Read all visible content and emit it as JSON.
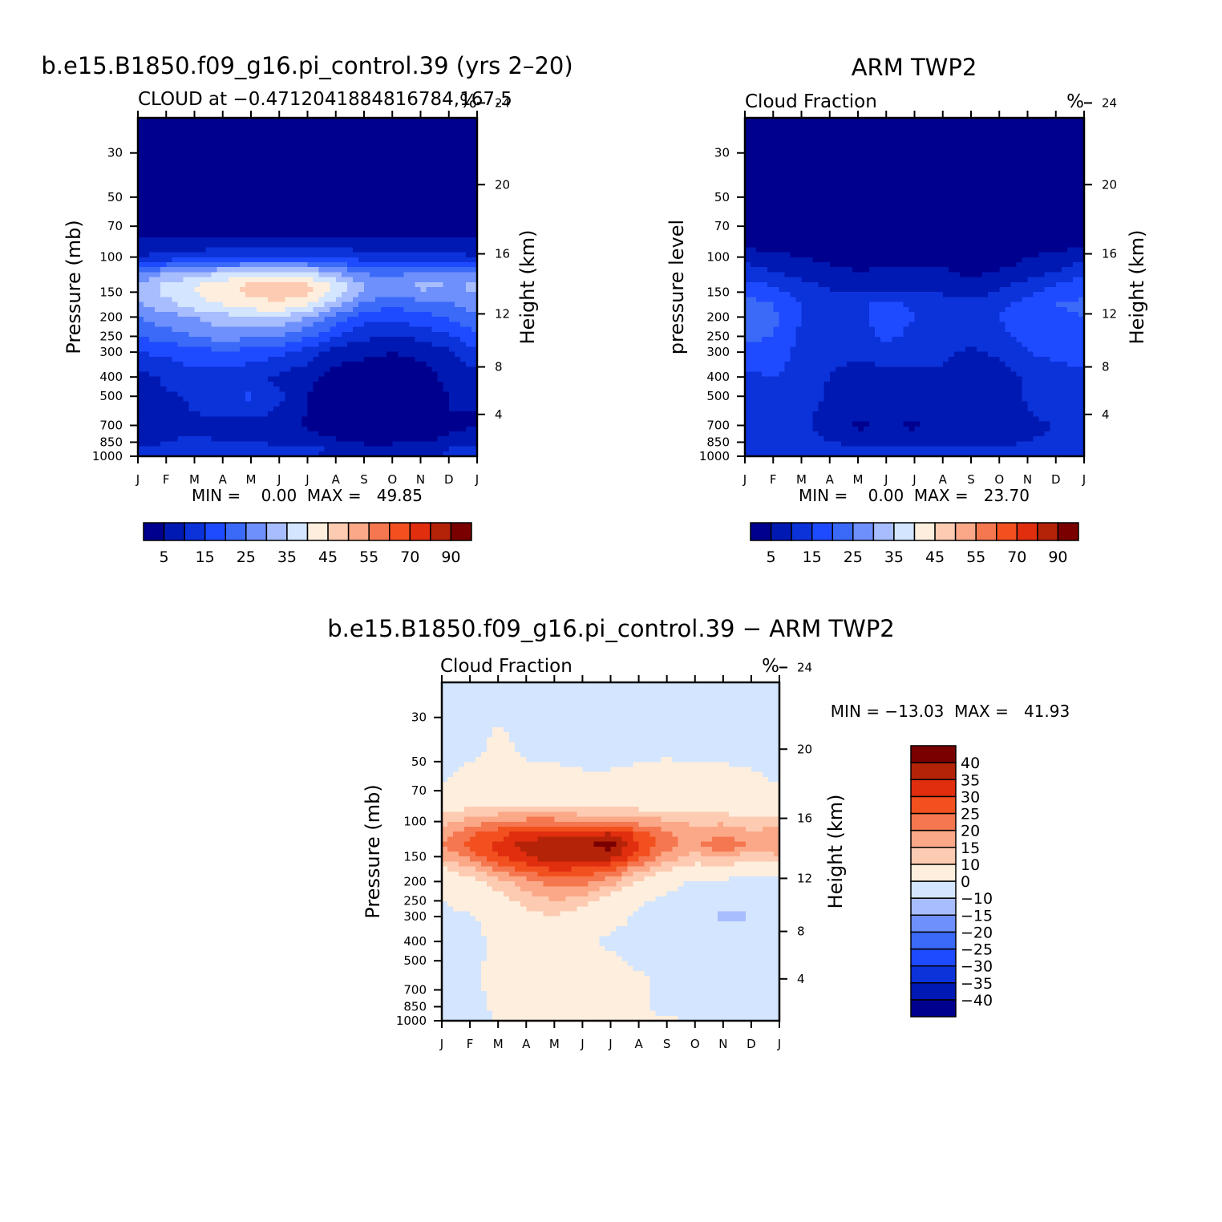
{
  "figure": {
    "width": 1524,
    "height": 1524
  },
  "color_levels": {
    "cloud_boundaries": [
      0,
      5,
      10,
      15,
      20,
      25,
      30,
      35,
      40,
      45,
      50,
      55,
      60,
      70,
      80,
      90,
      100
    ],
    "cloud_colors": [
      "#00008f",
      "#0019b2",
      "#0c32da",
      "#1e4bff",
      "#3b6af8",
      "#6e90fc",
      "#a7bdfd",
      "#d3e5ff",
      "#feeedd",
      "#fdcbb1",
      "#fba888",
      "#f5774f",
      "#f2501e",
      "#e02e0f",
      "#b42307",
      "#7a0000"
    ],
    "cloud_ticks": [
      "5",
      "15",
      "25",
      "35",
      "45",
      "55",
      "70",
      "90"
    ],
    "diff_boundaries": [
      -45,
      -40,
      -35,
      -30,
      -25,
      -20,
      -15,
      -10,
      0,
      10,
      15,
      20,
      25,
      30,
      35,
      40,
      45
    ],
    "diff_colors": [
      "#00008f",
      "#0019b2",
      "#0c32da",
      "#1e4bff",
      "#3b6af8",
      "#6e90fc",
      "#a7bdfd",
      "#d3e5ff",
      "#feeedd",
      "#fdcbb1",
      "#fba888",
      "#f5774f",
      "#f2501e",
      "#e02e0f",
      "#b42307",
      "#7a0000"
    ],
    "diff_ticks": [
      "-40",
      "-35",
      "-30",
      "-25",
      "-20",
      "-15",
      "-10",
      "0",
      "10",
      "15",
      "20",
      "25",
      "30",
      "35",
      "40"
    ]
  },
  "chart_data": [
    {
      "type": "heatmap",
      "id": "model",
      "title": "b.e15.B1850.f09_g16.pi_control.39 (yrs 2–20)",
      "subtitle_left": "CLOUD at −0.4712041884816784,167.5",
      "subtitle_right": "%",
      "ylabel": "Pressure (mb)",
      "y2label": "Height (km)",
      "months": [
        "J",
        "F",
        "M",
        "A",
        "M",
        "J",
        "J",
        "A",
        "S",
        "O",
        "N",
        "D",
        "J"
      ],
      "pressure_ticks": [
        30,
        50,
        70,
        100,
        150,
        200,
        250,
        300,
        400,
        500,
        700,
        850,
        1000
      ],
      "height_ticks": [
        4,
        8,
        12,
        16,
        20,
        24
      ],
      "ylim": [
        20,
        1000
      ],
      "min_max_text": "MIN =    0.00  MAX =   49.85",
      "month_x": [
        0,
        1,
        2,
        3,
        4,
        5,
        6,
        7,
        8,
        9,
        10,
        11,
        12
      ],
      "levels_mb": [
        20,
        60,
        80,
        100,
        120,
        140,
        160,
        180,
        200,
        250,
        300,
        400,
        500,
        600,
        700,
        850,
        950,
        1000
      ],
      "values": [
        [
          1,
          1,
          1,
          1,
          1,
          1,
          1,
          1,
          1,
          1,
          1,
          1,
          1
        ],
        [
          2,
          2,
          2,
          2,
          2,
          2,
          2,
          2,
          2,
          2,
          2,
          2,
          2
        ],
        [
          5,
          5,
          5,
          5,
          5,
          5,
          5,
          5,
          5,
          5,
          5,
          5,
          5
        ],
        [
          10,
          12,
          13,
          14,
          16,
          16,
          16,
          14,
          13,
          11,
          12,
          12,
          10
        ],
        [
          25,
          30,
          33,
          35,
          37,
          37,
          36,
          30,
          25,
          23,
          28,
          26,
          25
        ],
        [
          32,
          37,
          40,
          44,
          47,
          48,
          47,
          40,
          30,
          27,
          32,
          30,
          31
        ],
        [
          30,
          35,
          39,
          42,
          45,
          46,
          44,
          36,
          27,
          24,
          26,
          27,
          29
        ],
        [
          28,
          32,
          36,
          39,
          41,
          42,
          38,
          30,
          22,
          20,
          22,
          23,
          27
        ],
        [
          25,
          28,
          30,
          33,
          34,
          34,
          30,
          23,
          17,
          16,
          18,
          21,
          24
        ],
        [
          20,
          22,
          25,
          27,
          26,
          25,
          21,
          15,
          11,
          10,
          11,
          14,
          19
        ],
        [
          15,
          16,
          18,
          19,
          18,
          16,
          13,
          7,
          6,
          5,
          6,
          9,
          14
        ],
        [
          8,
          11,
          13,
          12,
          11,
          9,
          6,
          3,
          2,
          2,
          3,
          6,
          8
        ],
        [
          6,
          9,
          11,
          14,
          16,
          11,
          5,
          2,
          1,
          1,
          2,
          5,
          6
        ],
        [
          5,
          8,
          10,
          11,
          12,
          9,
          5,
          2,
          1,
          1,
          2,
          5,
          5
        ],
        [
          5,
          8,
          9,
          8,
          8,
          7,
          4,
          2,
          1,
          1,
          2,
          4,
          5
        ],
        [
          7,
          10,
          11,
          10,
          10,
          9,
          8,
          6,
          4,
          4,
          5,
          6,
          7
        ],
        [
          12,
          14,
          14,
          14,
          14,
          13,
          12,
          11,
          10,
          10,
          11,
          12,
          12
        ],
        [
          8,
          9,
          9,
          9,
          9,
          8,
          8,
          8,
          7,
          7,
          7,
          8,
          8
        ]
      ]
    },
    {
      "type": "heatmap",
      "id": "obs",
      "title": "ARM TWP2",
      "subtitle_left": "Cloud Fraction",
      "subtitle_right": "%",
      "ylabel": "pressure level",
      "y2label": "Height (km)",
      "months": [
        "J",
        "F",
        "M",
        "A",
        "M",
        "J",
        "J",
        "A",
        "S",
        "O",
        "N",
        "D",
        "J"
      ],
      "pressure_ticks": [
        30,
        50,
        70,
        100,
        150,
        200,
        250,
        300,
        400,
        500,
        700,
        850,
        1000
      ],
      "height_ticks": [
        4,
        8,
        12,
        16,
        20,
        24
      ],
      "ylim": [
        20,
        1000
      ],
      "min_max_text": "MIN =    0.00  MAX =   23.70",
      "month_x": [
        0,
        1,
        2,
        3,
        4,
        5,
        6,
        7,
        8,
        9,
        10,
        11,
        12
      ],
      "levels_mb": [
        20,
        70,
        90,
        110,
        140,
        170,
        200,
        250,
        300,
        400,
        500,
        600,
        700,
        850,
        950,
        1000
      ],
      "values": [
        [
          1,
          1,
          1,
          1,
          1,
          1,
          1,
          1,
          1,
          1,
          1,
          1,
          1
        ],
        [
          2,
          2,
          2,
          2,
          2,
          2,
          2,
          2,
          2,
          2,
          2,
          2,
          2
        ],
        [
          5,
          4,
          4,
          3,
          3,
          3,
          3,
          3,
          3,
          3,
          4,
          4,
          5
        ],
        [
          11,
          8,
          6,
          5,
          4,
          5,
          4,
          5,
          3,
          4,
          6,
          8,
          12
        ],
        [
          17,
          15,
          12,
          9,
          8,
          8,
          9,
          8,
          6,
          9,
          12,
          16,
          18
        ],
        [
          22,
          20,
          15,
          13,
          14,
          16,
          14,
          12,
          11,
          14,
          17,
          20,
          21
        ],
        [
          22,
          21,
          15,
          13,
          14,
          17,
          15,
          13,
          12,
          15,
          18,
          19,
          20
        ],
        [
          21,
          20,
          14,
          12,
          13,
          16,
          14,
          12,
          13,
          14,
          16,
          17,
          19
        ],
        [
          18,
          18,
          13,
          11,
          11,
          12,
          12,
          11,
          9,
          11,
          15,
          16,
          17
        ],
        [
          14,
          15,
          13,
          10,
          8,
          8,
          8,
          9,
          6,
          7,
          11,
          13,
          14
        ],
        [
          12,
          13,
          13,
          9,
          7,
          7,
          8,
          10,
          5,
          5,
          11,
          12,
          12
        ],
        [
          11,
          12,
          12,
          8,
          6,
          7,
          8,
          9,
          5,
          5,
          10,
          11,
          11
        ],
        [
          10,
          10,
          11,
          8,
          4,
          6,
          4,
          7,
          6,
          5,
          9,
          10,
          10
        ],
        [
          11,
          12,
          12,
          10,
          8,
          8,
          8,
          9,
          9,
          8,
          10,
          11,
          11
        ],
        [
          15,
          15,
          15,
          14,
          14,
          14,
          14,
          14,
          14,
          14,
          14,
          15,
          15
        ],
        [
          10,
          10,
          10,
          10,
          10,
          10,
          10,
          10,
          10,
          10,
          10,
          10,
          10
        ]
      ]
    },
    {
      "type": "heatmap",
      "id": "diff",
      "title": "b.e15.B1850.f09_g16.pi_control.39 − ARM TWP2",
      "subtitle_left": "Cloud Fraction",
      "subtitle_right": "%",
      "ylabel": "Pressure (mb)",
      "y2label": "Height (km)",
      "months": [
        "J",
        "F",
        "M",
        "A",
        "M",
        "J",
        "J",
        "A",
        "S",
        "O",
        "N",
        "D",
        "J"
      ],
      "pressure_ticks": [
        30,
        50,
        70,
        100,
        150,
        200,
        250,
        300,
        400,
        500,
        700,
        850,
        1000
      ],
      "height_ticks": [
        4,
        8,
        12,
        16,
        20,
        24
      ],
      "ylim": [
        20,
        1000
      ],
      "min_max_text": "MIN = −13.03  MAX =   41.93",
      "month_x": [
        0,
        1,
        2,
        3,
        4,
        5,
        6,
        7,
        8,
        9,
        10,
        11,
        12
      ],
      "levels_mb": [
        20,
        45,
        60,
        80,
        100,
        115,
        130,
        150,
        170,
        200,
        250,
        300,
        400,
        500,
        600,
        700,
        850,
        1000
      ],
      "values": [
        [
          -2,
          -2,
          -2,
          -2,
          -2,
          -2,
          -2,
          -2,
          -2,
          -2,
          -2,
          -2,
          -2
        ],
        [
          -2,
          -2,
          2,
          -1,
          -2,
          -2,
          -2,
          -2,
          -1,
          -2,
          -2,
          -2,
          -2
        ],
        [
          -1,
          3,
          5,
          2,
          3,
          1,
          1,
          3,
          4,
          3,
          3,
          1,
          -1
        ],
        [
          5,
          7,
          8,
          8,
          8,
          7,
          6,
          6,
          6,
          5,
          5,
          5,
          5
        ],
        [
          13,
          17,
          20,
          22,
          22,
          20,
          20,
          18,
          16,
          14,
          14,
          12,
          13
        ],
        [
          18,
          24,
          28,
          32,
          34,
          34,
          35,
          28,
          21,
          16,
          20,
          16,
          18
        ],
        [
          20,
          26,
          31,
          37,
          38,
          39,
          42,
          30,
          22,
          18,
          25,
          18,
          20
        ],
        [
          16,
          22,
          30,
          35,
          38,
          38,
          38,
          28,
          18,
          13,
          17,
          12,
          14
        ],
        [
          10,
          15,
          22,
          28,
          32,
          30,
          27,
          18,
          12,
          8,
          9,
          6,
          6
        ],
        [
          5,
          8,
          13,
          18,
          23,
          22,
          17,
          9,
          3,
          -2,
          -2,
          -3,
          -2
        ],
        [
          0,
          3,
          7,
          12,
          15,
          12,
          6,
          1,
          -2,
          -4,
          -8,
          -9,
          -4
        ],
        [
          -2,
          -1,
          3,
          8,
          10,
          6,
          3,
          -1,
          -3,
          -4,
          -12,
          -10,
          -5
        ],
        [
          -3,
          -2,
          1,
          5,
          4,
          2,
          -2,
          -3,
          -4,
          -4,
          -4,
          -3,
          -3
        ],
        [
          -3,
          -2,
          2,
          4,
          8,
          3,
          2,
          -2,
          -3,
          -3,
          -3,
          -3,
          -3
        ],
        [
          -3,
          -2,
          2,
          5,
          4,
          5,
          3,
          1,
          -2,
          -3,
          -3,
          -3,
          -3
        ],
        [
          -3,
          -2,
          2,
          4,
          4,
          5,
          5,
          1,
          -2,
          -3,
          -3,
          -3,
          -3
        ],
        [
          -3,
          -2,
          1,
          3,
          3,
          3,
          3,
          1,
          -2,
          -3,
          -3,
          -3,
          -3
        ],
        [
          -1,
          -1,
          0,
          1,
          1,
          1,
          1,
          1,
          1,
          0,
          -1,
          -1,
          -1
        ]
      ]
    }
  ]
}
